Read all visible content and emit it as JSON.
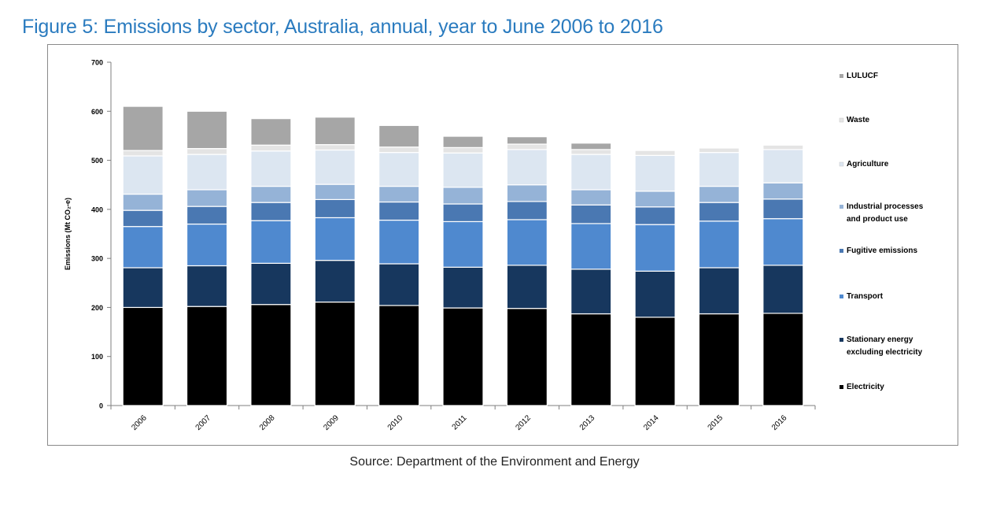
{
  "figure": {
    "title": "Figure 5: Emissions by sector, Australia, annual, year to June 2006 to 2016",
    "source": "Source: Department of the Environment and Energy"
  },
  "colors": {
    "title": "#2a7bbf"
  },
  "chart_data": {
    "type": "bar",
    "stacked": true,
    "title": "Figure 5: Emissions by sector, Australia, annual, year to June 2006 to 2016",
    "xlabel": "",
    "ylabel": "Emissions (Mt CO₂-e)",
    "ylim": [
      0,
      700
    ],
    "yticks": [
      0,
      100,
      200,
      300,
      400,
      500,
      600,
      700
    ],
    "grid": false,
    "legend_position": "right",
    "categories": [
      "2006",
      "2007",
      "2008",
      "2009",
      "2010",
      "2011",
      "2012",
      "2013",
      "2014",
      "2015",
      "2016"
    ],
    "series": [
      {
        "name": "Electricity",
        "color": "#000000",
        "values": [
          200,
          202,
          206,
          211,
          204,
          199,
          198,
          187,
          180,
          187,
          188
        ]
      },
      {
        "name": "Stationary energy excluding electricity",
        "color": "#17375e",
        "values": [
          81,
          83,
          84,
          85,
          85,
          83,
          88,
          91,
          94,
          94,
          98
        ]
      },
      {
        "name": "Transport",
        "color": "#4f89cf",
        "values": [
          84,
          85,
          87,
          87,
          89,
          93,
          93,
          93,
          95,
          95,
          95
        ]
      },
      {
        "name": "Fugitive emissions",
        "color": "#4a78b2",
        "values": [
          33,
          36,
          37,
          37,
          37,
          36,
          37,
          38,
          36,
          38,
          40
        ]
      },
      {
        "name": "Industrial processes and product use",
        "color": "#95b3d7",
        "values": [
          33,
          34,
          33,
          31,
          32,
          34,
          34,
          31,
          32,
          33,
          33
        ]
      },
      {
        "name": "Agriculture",
        "color": "#dce6f1",
        "values": [
          78,
          72,
          72,
          70,
          69,
          70,
          72,
          72,
          73,
          69,
          68
        ]
      },
      {
        "name": "Waste",
        "color": "#e4e4e4",
        "values": [
          11,
          12,
          12,
          11,
          11,
          11,
          11,
          10,
          10,
          9,
          9
        ]
      },
      {
        "name": "LULUCF",
        "color": "#a6a6a6",
        "values": [
          90,
          76,
          54,
          56,
          44,
          23,
          15,
          13,
          0,
          0,
          0
        ]
      }
    ],
    "legend_order": [
      "LULUCF",
      "Waste",
      "Agriculture",
      "Industrial processes and product use",
      "Fugitive emissions",
      "Transport",
      "Stationary energy excluding electricity",
      "Electricity"
    ]
  }
}
